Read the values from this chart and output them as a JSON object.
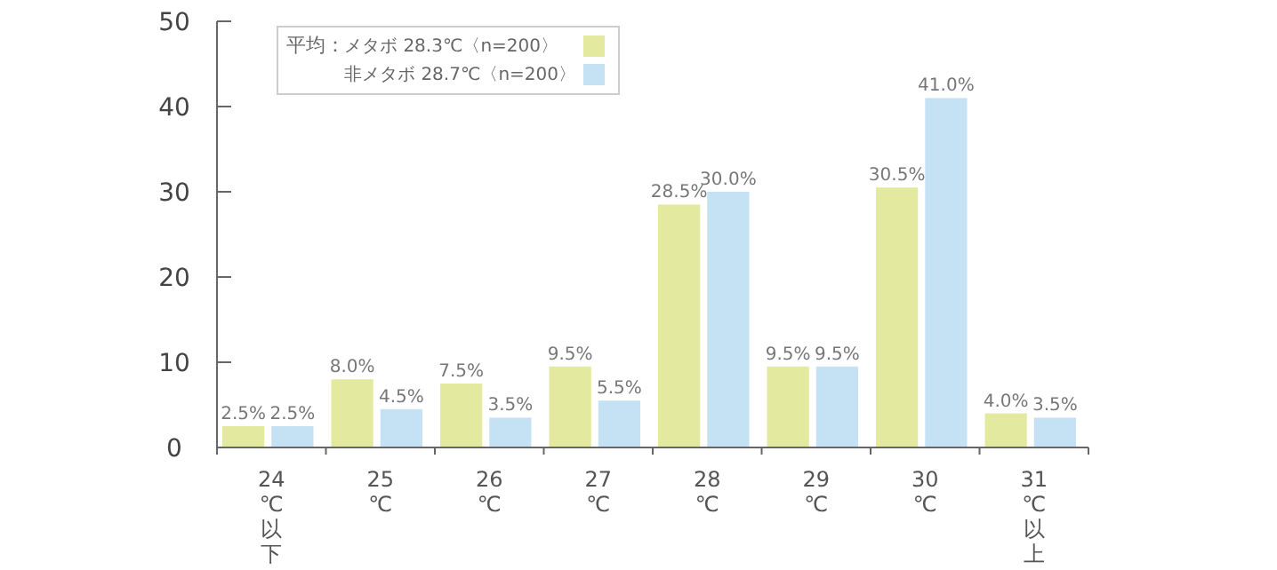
{
  "chart_data": {
    "type": "bar",
    "categories": [
      "24℃以下",
      "25℃",
      "26℃",
      "27℃",
      "28℃",
      "29℃",
      "30℃",
      "31℃以上"
    ],
    "legend_title": "平均：",
    "legend": "top left",
    "grid": false,
    "ylim": [
      0,
      50
    ],
    "yticks": [
      0,
      10,
      20,
      30,
      40,
      50
    ],
    "series": [
      {
        "name": "メタボ 28.3℃〈n=200〉",
        "color": "#e3eaa0",
        "values": [
          2.5,
          8.0,
          7.5,
          9.5,
          28.5,
          9.5,
          30.5,
          4.0
        ],
        "value_labels": [
          "2.5%",
          "8.0%",
          "7.5%",
          "9.5%",
          "28.5%",
          "9.5%",
          "30.5%",
          "4.0%"
        ]
      },
      {
        "name": "非メタボ 28.7℃〈n=200〉",
        "color": "#c5e2f5",
        "values": [
          2.5,
          4.5,
          3.5,
          5.5,
          30.0,
          9.5,
          41.0,
          3.5
        ],
        "value_labels": [
          "2.5%",
          "4.5%",
          "3.5%",
          "5.5%",
          "30.0%",
          "9.5%",
          "41.0%",
          "3.5%"
        ]
      }
    ]
  }
}
